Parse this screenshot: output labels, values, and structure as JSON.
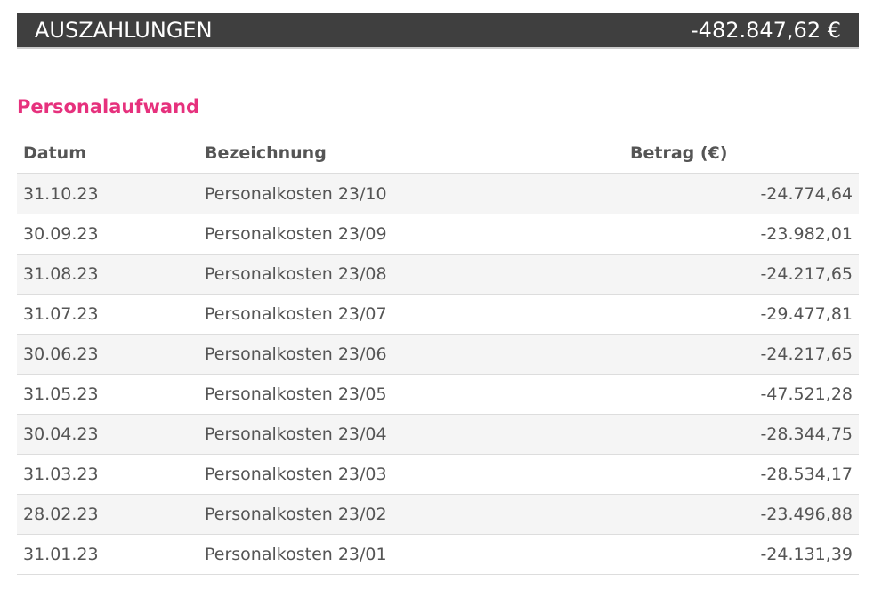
{
  "header": {
    "title": "AUSZAHLUNGEN",
    "total": "-482.847,62 €"
  },
  "section": {
    "title": "Personalaufwand"
  },
  "table": {
    "columns": [
      "Datum",
      "Bezeichnung",
      "Betrag (€)"
    ],
    "rows": [
      {
        "date": "31.10.23",
        "label": "Personalkosten 23/10",
        "amount": "-24.774,64"
      },
      {
        "date": "30.09.23",
        "label": "Personalkosten 23/09",
        "amount": "-23.982,01"
      },
      {
        "date": "31.08.23",
        "label": "Personalkosten 23/08",
        "amount": "-24.217,65"
      },
      {
        "date": "31.07.23",
        "label": "Personalkosten 23/07",
        "amount": "-29.477,81"
      },
      {
        "date": "30.06.23",
        "label": "Personalkosten 23/06",
        "amount": "-24.217,65"
      },
      {
        "date": "31.05.23",
        "label": "Personalkosten 23/05",
        "amount": "-47.521,28"
      },
      {
        "date": "30.04.23",
        "label": "Personalkosten 23/04",
        "amount": "-28.344,75"
      },
      {
        "date": "31.03.23",
        "label": "Personalkosten 23/03",
        "amount": "-28.534,17"
      },
      {
        "date": "28.02.23",
        "label": "Personalkosten 23/02",
        "amount": "-23.496,88"
      },
      {
        "date": "31.01.23",
        "label": "Personalkosten 23/01",
        "amount": "-24.131,39"
      }
    ]
  },
  "colors": {
    "header_bg": "#3f3f3f",
    "accent": "#e6317d",
    "stripe": "#f5f5f5"
  }
}
